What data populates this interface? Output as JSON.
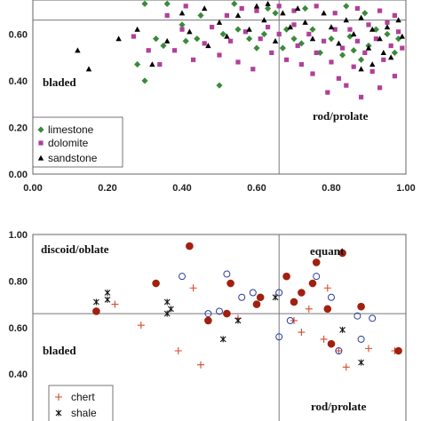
{
  "chart_data": [
    {
      "type": "scatter",
      "xlim": [
        0,
        1
      ],
      "ylim": [
        0,
        1
      ],
      "x_ticks": [
        "0.00",
        "0.20",
        "0.40",
        "0.60",
        "0.80",
        "1.00"
      ],
      "y_ticks": [
        "0.00",
        "0.20",
        "0.40",
        "0.60"
      ],
      "divider_x": 0.66,
      "divider_y": 0.66,
      "region_labels": {
        "lower_left": "bladed",
        "lower_right": "rod/prolate"
      },
      "legend_position": "bottom-left",
      "series": [
        {
          "name": "limestone",
          "marker": "diamond",
          "color": "#3a8a3a",
          "points": [
            [
              0.28,
              0.47
            ],
            [
              0.3,
              0.4
            ],
            [
              0.33,
              0.58
            ],
            [
              0.35,
              0.55
            ],
            [
              0.4,
              0.64
            ],
            [
              0.41,
              0.57
            ],
            [
              0.44,
              0.58
            ],
            [
              0.45,
              0.68
            ],
            [
              0.5,
              0.38
            ],
            [
              0.51,
              0.6
            ],
            [
              0.55,
              0.62
            ],
            [
              0.58,
              0.58
            ],
            [
              0.6,
              0.54
            ],
            [
              0.62,
              0.6
            ],
            [
              0.63,
              0.71
            ],
            [
              0.65,
              0.69
            ],
            [
              0.67,
              0.54
            ],
            [
              0.68,
              0.62
            ],
            [
              0.7,
              0.58
            ],
            [
              0.72,
              0.56
            ],
            [
              0.75,
              0.62
            ],
            [
              0.77,
              0.52
            ],
            [
              0.8,
              0.58
            ],
            [
              0.83,
              0.51
            ],
            [
              0.85,
              0.59
            ],
            [
              0.86,
              0.53
            ],
            [
              0.88,
              0.49
            ],
            [
              0.9,
              0.55
            ],
            [
              0.92,
              0.62
            ],
            [
              0.95,
              0.6
            ],
            [
              0.97,
              0.52
            ],
            [
              0.98,
              0.58
            ],
            [
              0.3,
              0.73
            ],
            [
              0.36,
              0.73
            ],
            [
              0.54,
              0.73
            ],
            [
              0.73,
              0.71
            ],
            [
              0.84,
              0.72
            ],
            [
              0.89,
              0.69
            ]
          ]
        },
        {
          "name": "dolomite",
          "marker": "square",
          "color": "#b0409a",
          "points": [
            [
              0.27,
              0.59
            ],
            [
              0.31,
              0.53
            ],
            [
              0.34,
              0.47
            ],
            [
              0.36,
              0.68
            ],
            [
              0.38,
              0.53
            ],
            [
              0.4,
              0.62
            ],
            [
              0.43,
              0.49
            ],
            [
              0.46,
              0.56
            ],
            [
              0.48,
              0.63
            ],
            [
              0.5,
              0.51
            ],
            [
              0.53,
              0.57
            ],
            [
              0.55,
              0.48
            ],
            [
              0.57,
              0.61
            ],
            [
              0.59,
              0.45
            ],
            [
              0.61,
              0.58
            ],
            [
              0.63,
              0.63
            ],
            [
              0.64,
              0.52
            ],
            [
              0.66,
              0.6
            ],
            [
              0.68,
              0.49
            ],
            [
              0.7,
              0.64
            ],
            [
              0.71,
              0.55
            ],
            [
              0.72,
              0.47
            ],
            [
              0.74,
              0.6
            ],
            [
              0.75,
              0.43
            ],
            [
              0.76,
              0.52
            ],
            [
              0.78,
              0.57
            ],
            [
              0.79,
              0.35
            ],
            [
              0.8,
              0.48
            ],
            [
              0.81,
              0.62
            ],
            [
              0.82,
              0.41
            ],
            [
              0.83,
              0.54
            ],
            [
              0.84,
              0.38
            ],
            [
              0.85,
              0.62
            ],
            [
              0.86,
              0.46
            ],
            [
              0.87,
              0.57
            ],
            [
              0.88,
              0.33
            ],
            [
              0.89,
              0.52
            ],
            [
              0.9,
              0.64
            ],
            [
              0.91,
              0.44
            ],
            [
              0.92,
              0.58
            ],
            [
              0.93,
              0.37
            ],
            [
              0.94,
              0.49
            ],
            [
              0.95,
              0.65
            ],
            [
              0.96,
              0.55
            ],
            [
              0.97,
              0.42
            ],
            [
              0.98,
              0.61
            ],
            [
              0.99,
              0.54
            ],
            [
              0.66,
              0.72
            ],
            [
              0.7,
              0.7
            ],
            [
              0.76,
              0.72
            ],
            [
              0.81,
              0.69
            ],
            [
              0.87,
              0.71
            ],
            [
              0.93,
              0.7
            ],
            [
              0.97,
              0.68
            ],
            [
              0.56,
              0.71
            ],
            [
              0.41,
              0.72
            ],
            [
              0.52,
              0.68
            ],
            [
              0.6,
              0.7
            ]
          ]
        },
        {
          "name": "sandstone",
          "marker": "triangle",
          "color": "#000000",
          "points": [
            [
              0.12,
              0.53
            ],
            [
              0.15,
              0.45
            ],
            [
              0.23,
              0.58
            ],
            [
              0.28,
              0.62
            ],
            [
              0.32,
              0.47
            ],
            [
              0.36,
              0.57
            ],
            [
              0.4,
              0.69
            ],
            [
              0.42,
              0.61
            ],
            [
              0.47,
              0.55
            ],
            [
              0.5,
              0.65
            ],
            [
              0.52,
              0.59
            ],
            [
              0.55,
              0.68
            ],
            [
              0.58,
              0.62
            ],
            [
              0.6,
              0.72
            ],
            [
              0.62,
              0.66
            ],
            [
              0.65,
              0.57
            ],
            [
              0.67,
              0.69
            ],
            [
              0.69,
              0.63
            ],
            [
              0.71,
              0.71
            ],
            [
              0.73,
              0.65
            ],
            [
              0.75,
              0.58
            ],
            [
              0.78,
              0.69
            ],
            [
              0.8,
              0.63
            ],
            [
              0.82,
              0.56
            ],
            [
              0.84,
              0.66
            ],
            [
              0.86,
              0.6
            ],
            [
              0.88,
              0.67
            ],
            [
              0.9,
              0.54
            ],
            [
              0.91,
              0.62
            ],
            [
              0.93,
              0.58
            ],
            [
              0.95,
              0.63
            ],
            [
              0.96,
              0.5
            ],
            [
              0.98,
              0.66
            ],
            [
              0.99,
              0.59
            ],
            [
              0.88,
              0.45
            ],
            [
              0.91,
              0.47
            ],
            [
              0.94,
              0.52
            ],
            [
              0.46,
              0.71
            ],
            [
              0.63,
              0.73
            ]
          ]
        }
      ]
    },
    {
      "type": "scatter",
      "xlim": [
        0,
        1
      ],
      "ylim": [
        0,
        1
      ],
      "y_ticks": [
        "0.40",
        "0.60",
        "0.80",
        "1.00"
      ],
      "divider_x": 0.66,
      "divider_y": 0.66,
      "region_labels": {
        "upper_left": "discoid/oblate",
        "upper_right": "equant",
        "lower_left": "bladed",
        "lower_right": "rod/prolate"
      },
      "legend_position": "bottom-left",
      "series": [
        {
          "name": "chert",
          "marker": "plus",
          "color": "#d84a2a",
          "points": [
            [
              0.22,
              0.7
            ],
            [
              0.29,
              0.61
            ],
            [
              0.39,
              0.5
            ],
            [
              0.43,
              0.77
            ],
            [
              0.45,
              0.44
            ],
            [
              0.55,
              0.64
            ],
            [
              0.7,
              0.63
            ],
            [
              0.72,
              0.58
            ],
            [
              0.74,
              0.68
            ],
            [
              0.78,
              0.55
            ],
            [
              0.79,
              0.77
            ],
            [
              0.82,
              0.5
            ],
            [
              0.84,
              0.43
            ],
            [
              0.9,
              0.51
            ],
            [
              0.97,
              0.5
            ]
          ]
        },
        {
          "name": "shale",
          "marker": "x",
          "color": "#111111",
          "points": [
            [
              0.17,
              0.71
            ],
            [
              0.2,
              0.75
            ],
            [
              0.2,
              0.72
            ],
            [
              0.36,
              0.66
            ],
            [
              0.36,
              0.71
            ],
            [
              0.37,
              0.68
            ],
            [
              0.51,
              0.55
            ],
            [
              0.55,
              0.63
            ],
            [
              0.65,
              0.73
            ],
            [
              0.7,
              0.71
            ],
            [
              0.83,
              0.59
            ],
            [
              0.88,
              0.45
            ]
          ]
        },
        {
          "name": "",
          "marker": "circle-open",
          "color": "#2b3d9a",
          "points": [
            [
              0.4,
              0.82
            ],
            [
              0.47,
              0.66
            ],
            [
              0.5,
              0.67
            ],
            [
              0.52,
              0.83
            ],
            [
              0.56,
              0.73
            ],
            [
              0.59,
              0.75
            ],
            [
              0.66,
              0.56
            ],
            [
              0.66,
              0.75
            ],
            [
              0.69,
              0.63
            ],
            [
              0.76,
              0.82
            ],
            [
              0.8,
              0.73
            ],
            [
              0.82,
              0.5
            ],
            [
              0.87,
              0.65
            ],
            [
              0.88,
              0.55
            ],
            [
              0.91,
              0.64
            ]
          ]
        },
        {
          "name": "",
          "marker": "circle-filled",
          "color": "#a1200f",
          "points": [
            [
              0.17,
              0.67
            ],
            [
              0.33,
              0.79
            ],
            [
              0.42,
              0.95
            ],
            [
              0.47,
              0.63
            ],
            [
              0.52,
              0.66
            ],
            [
              0.53,
              0.79
            ],
            [
              0.6,
              0.7
            ],
            [
              0.61,
              0.73
            ],
            [
              0.68,
              0.82
            ],
            [
              0.7,
              0.71
            ],
            [
              0.72,
              0.75
            ],
            [
              0.75,
              0.79
            ],
            [
              0.76,
              0.88
            ],
            [
              0.79,
              0.68
            ],
            [
              0.8,
              0.53
            ],
            [
              0.83,
              0.92
            ],
            [
              0.88,
              0.69
            ],
            [
              0.98,
              0.5
            ]
          ]
        }
      ]
    }
  ]
}
